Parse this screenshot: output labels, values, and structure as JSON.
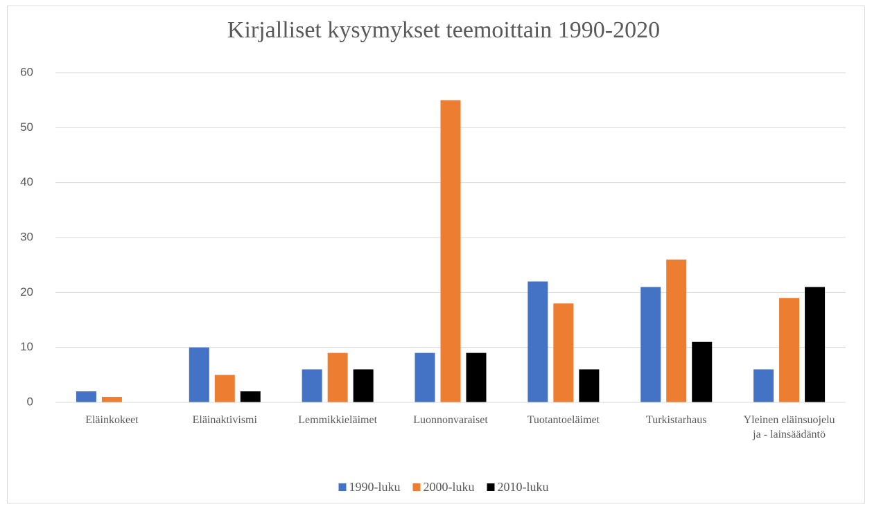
{
  "chart_data": {
    "type": "bar",
    "title": "Kirjalliset kysymykset teemoittain 1990-2020",
    "categories": [
      "Eläinkokeet",
      "Eläinaktivismi",
      "Lemmikkieläimet",
      "Luonnonvaraiset",
      "Tuotantoeläimet",
      "Turkistarhaus",
      "Yleinen eläinsuojelu ja - lainsäädäntö"
    ],
    "series": [
      {
        "name": "1990-luku",
        "color": "#4472c4",
        "values": [
          2,
          10,
          6,
          9,
          22,
          21,
          6
        ]
      },
      {
        "name": "2000-luku",
        "color": "#ed7d31",
        "values": [
          1,
          5,
          9,
          55,
          18,
          26,
          19
        ]
      },
      {
        "name": "2010-luku",
        "color": "#000000",
        "values": [
          0,
          2,
          6,
          9,
          6,
          11,
          21
        ]
      }
    ],
    "ylim": [
      0,
      60
    ],
    "yticks": [
      0,
      10,
      20,
      30,
      40,
      50,
      60
    ],
    "grid": true,
    "legend": "bottom"
  }
}
